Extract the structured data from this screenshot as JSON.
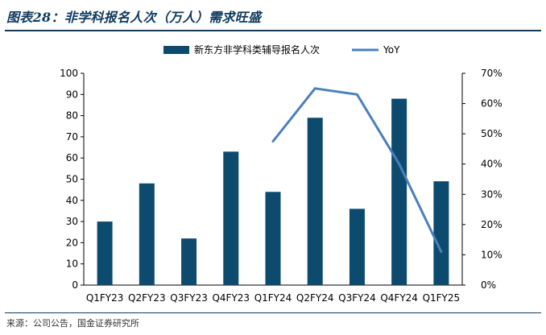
{
  "header": {
    "title": "图表28：非学科报名人次（万人）需求旺盛"
  },
  "footer": {
    "source": "来源：公司公告，国金证券研究所"
  },
  "colors": {
    "bar": "#0c4a6e",
    "line": "#4a7fbd",
    "title": "#0f3a5c"
  },
  "chart_data": {
    "type": "bar",
    "categories": [
      "Q1FY23",
      "Q2FY23",
      "Q3FY23",
      "Q4FY23",
      "Q1FY24",
      "Q2FY24",
      "Q3FY24",
      "Q4FY24",
      "Q1FY25"
    ],
    "series": [
      {
        "name": "新东方非学科类辅导报名人次",
        "type": "bar",
        "axis": "left",
        "values": [
          30,
          48,
          22,
          63,
          44,
          79,
          36,
          88,
          49
        ]
      },
      {
        "name": "YoY",
        "type": "line",
        "axis": "right",
        "values": [
          null,
          null,
          null,
          null,
          0.475,
          0.65,
          0.63,
          0.4,
          0.11
        ]
      }
    ],
    "ylim_left": [
      0,
      100
    ],
    "yticks_left": [
      0,
      10,
      20,
      30,
      40,
      50,
      60,
      70,
      80,
      90,
      100
    ],
    "ylim_right": [
      0,
      0.7
    ],
    "yticks_right": [
      "0%",
      "10%",
      "20%",
      "30%",
      "40%",
      "50%",
      "60%",
      "70%"
    ],
    "legend": "top-center",
    "grid": false
  }
}
